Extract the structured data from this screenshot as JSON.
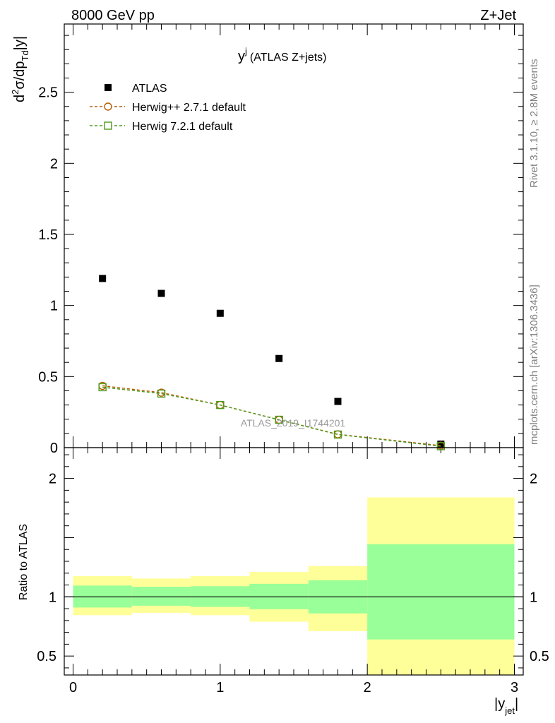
{
  "header": {
    "left": "8000 GeV pp",
    "right": "Z+Jet"
  },
  "side_text": {
    "rivet": "Rivet 3.1.10, ≥ 2.8M events",
    "mcplots": "mcplots.cern.ch [arXiv:1306.3436]"
  },
  "chart_data": [
    {
      "type": "scatter",
      "title_main": "y",
      "title_sup": "j",
      "title_rest": "(ATLAS Z+jets)",
      "ylabel": "d²σ/dp_Td|y|",
      "xlabel": "|y_jet|",
      "watermark": "ATLAS_2019_I1744201",
      "xlim": [
        -0.06,
        3.06
      ],
      "ylim": [
        0,
        2.98
      ],
      "y_ticks": [
        0,
        0.5,
        1,
        1.5,
        2,
        2.5
      ],
      "y_tick_labels": [
        "0",
        "0.5",
        "1",
        "1.5",
        "2",
        "2.5"
      ],
      "legend_position": "top-left",
      "series": [
        {
          "name": "ATLAS",
          "marker": "filled-square",
          "color": "#000000",
          "x": [
            0.2,
            0.6,
            1.0,
            1.4,
            1.8,
            2.5
          ],
          "y": [
            1.19,
            1.085,
            0.945,
            0.627,
            0.325,
            0.025
          ]
        },
        {
          "name": "Herwig++ 2.7.1 default",
          "marker": "open-circle",
          "color": "#b85c00",
          "x": [
            0.2,
            0.6,
            1.0,
            1.4,
            1.8,
            2.5
          ],
          "y": [
            0.435,
            0.387,
            0.3,
            0.196,
            0.094,
            0.014
          ]
        },
        {
          "name": "Herwig 7.2.1 default",
          "marker": "open-square",
          "color": "#4c9a1c",
          "x": [
            0.2,
            0.6,
            1.0,
            1.4,
            1.8,
            2.5
          ],
          "y": [
            0.425,
            0.38,
            0.3,
            0.196,
            0.092,
            0.01
          ]
        }
      ]
    },
    {
      "type": "area",
      "ylabel": "Ratio to ATLAS",
      "xlim": [
        -0.06,
        3.06
      ],
      "ylim": [
        0.34,
        2.26
      ],
      "x_ticks": [
        0,
        1,
        2,
        3
      ],
      "x_tick_labels": [
        "0",
        "1",
        "2",
        "3"
      ],
      "y_ticks": [
        0.5,
        1,
        2
      ],
      "y_tick_labels": [
        "0.5",
        "1",
        "2"
      ],
      "reference_line": 1,
      "bins": [
        {
          "x0": 0.0,
          "x1": 0.4,
          "yellow": [
            0.845,
            1.175
          ],
          "green": [
            0.91,
            1.095
          ]
        },
        {
          "x0": 0.4,
          "x1": 0.8,
          "yellow": [
            0.865,
            1.155
          ],
          "green": [
            0.925,
            1.085
          ]
        },
        {
          "x0": 0.8,
          "x1": 1.2,
          "yellow": [
            0.845,
            1.175
          ],
          "green": [
            0.915,
            1.09
          ]
        },
        {
          "x0": 1.2,
          "x1": 1.6,
          "yellow": [
            0.79,
            1.21
          ],
          "green": [
            0.895,
            1.11
          ]
        },
        {
          "x0": 1.6,
          "x1": 2.0,
          "yellow": [
            0.71,
            1.26
          ],
          "green": [
            0.86,
            1.14
          ]
        },
        {
          "x0": 2.0,
          "x1": 3.0,
          "yellow": [
            0.34,
            1.84
          ],
          "green": [
            0.64,
            1.445
          ]
        }
      ],
      "colors": {
        "yellow": "#ffff99",
        "green": "#99ff99"
      }
    }
  ]
}
